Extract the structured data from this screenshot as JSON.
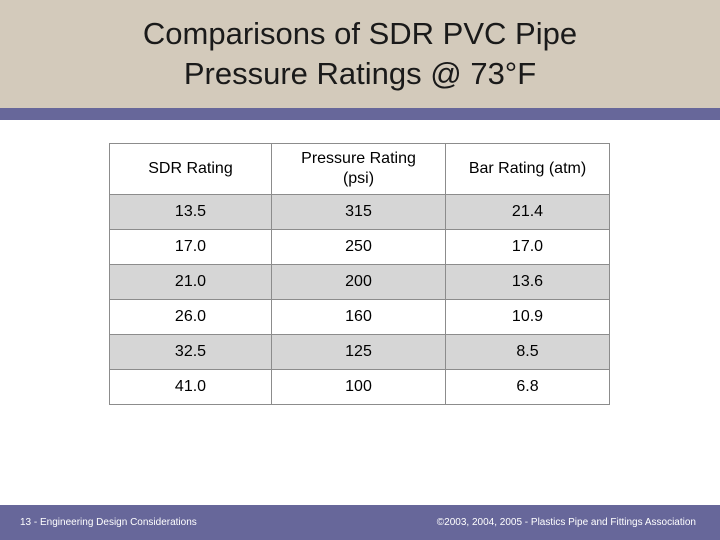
{
  "title": {
    "line1": "Comparisons of SDR PVC Pipe",
    "line2": "Pressure Ratings @ 73°F"
  },
  "table": {
    "headers": {
      "sdr": "SDR Rating",
      "pressure_line1": "Pressure Rating",
      "pressure_line2": "(psi)",
      "bar": "Bar Rating (atm)"
    },
    "rows": [
      {
        "sdr": "13.5",
        "psi": "315",
        "atm": "21.4"
      },
      {
        "sdr": "17.0",
        "psi": "250",
        "atm": "17.0"
      },
      {
        "sdr": "21.0",
        "psi": "200",
        "atm": "13.6"
      },
      {
        "sdr": "26.0",
        "psi": "160",
        "atm": "10.9"
      },
      {
        "sdr": "32.5",
        "psi": "125",
        "atm": "8.5"
      },
      {
        "sdr": "41.0",
        "psi": "100",
        "atm": "6.8"
      }
    ]
  },
  "footer": {
    "left": "13 - Engineering Design Considerations",
    "right": "©2003, 2004, 2005 - Plastics Pipe and Fittings Association"
  },
  "colors": {
    "title_band": "#d3cabb",
    "accent": "#67679a",
    "row_shade": "#d6d6d6"
  }
}
